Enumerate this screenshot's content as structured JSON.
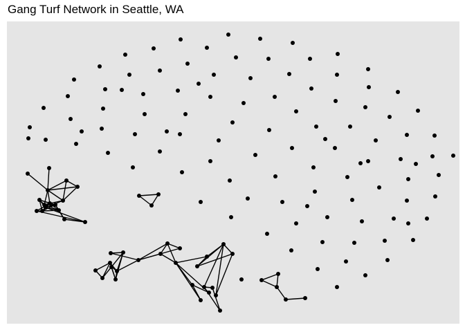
{
  "title": "Gang Turf Network in Seattle, WA",
  "colors": {
    "panel": "#e5e5e5",
    "node": "#000000",
    "edge": "#000000",
    "page": "#ffffff"
  },
  "network": {
    "components": [
      {
        "name": "cluster-left",
        "nodes": [
          "L1",
          "L2",
          "L3",
          "L4",
          "L5",
          "L6",
          "L7",
          "L8",
          "L9",
          "L10",
          "L11",
          "L12",
          "L13",
          "L14",
          "L15",
          "L16"
        ],
        "edges": [
          [
            "L1",
            "L3"
          ],
          [
            "L2",
            "L3"
          ],
          [
            "L3",
            "L4"
          ],
          [
            "L3",
            "L5"
          ],
          [
            "L3",
            "L7"
          ],
          [
            "L3",
            "L8"
          ],
          [
            "L3",
            "L9"
          ],
          [
            "L4",
            "L5"
          ],
          [
            "L4",
            "L8"
          ],
          [
            "L5",
            "L8"
          ],
          [
            "L6",
            "L7"
          ],
          [
            "L6",
            "L9"
          ],
          [
            "L6",
            "L10"
          ],
          [
            "L6",
            "L11"
          ],
          [
            "L6",
            "L12"
          ],
          [
            "L7",
            "L9"
          ],
          [
            "L7",
            "L11"
          ],
          [
            "L7",
            "L13"
          ],
          [
            "L8",
            "L9"
          ],
          [
            "L8",
            "L11"
          ],
          [
            "L9",
            "L10"
          ],
          [
            "L9",
            "L11"
          ],
          [
            "L9",
            "L12"
          ],
          [
            "L9",
            "L13"
          ],
          [
            "L9",
            "L14"
          ],
          [
            "L10",
            "L11"
          ],
          [
            "L10",
            "L12"
          ],
          [
            "L10",
            "L13"
          ],
          [
            "L10",
            "L15"
          ],
          [
            "L11",
            "L12"
          ],
          [
            "L11",
            "L13"
          ],
          [
            "L12",
            "L13"
          ],
          [
            "L12",
            "L14"
          ],
          [
            "L13",
            "L15"
          ],
          [
            "L14",
            "L16"
          ],
          [
            "L15",
            "L16"
          ],
          [
            "L11",
            "L16"
          ]
        ]
      },
      {
        "name": "triangle",
        "nodes": [
          "T1",
          "T2",
          "T3"
        ],
        "edges": [
          [
            "T1",
            "T2"
          ],
          [
            "T2",
            "T3"
          ],
          [
            "T1",
            "T3"
          ]
        ]
      },
      {
        "name": "cluster-bottom",
        "nodes": [
          "B1",
          "B2",
          "B3",
          "B4",
          "B5",
          "B6",
          "B7",
          "B8",
          "B9",
          "B10",
          "B11",
          "B12",
          "B13",
          "B14",
          "B15",
          "B16",
          "B17",
          "B18",
          "B19",
          "B20",
          "B21",
          "B22",
          "B23",
          "B24"
        ],
        "edges": [
          [
            "B1",
            "B2"
          ],
          [
            "B1",
            "B3"
          ],
          [
            "B2",
            "B3"
          ],
          [
            "B2",
            "B4"
          ],
          [
            "B3",
            "B4"
          ],
          [
            "B3",
            "B5"
          ],
          [
            "B3",
            "B6"
          ],
          [
            "B4",
            "B5"
          ],
          [
            "B4",
            "B6"
          ],
          [
            "B4",
            "B7"
          ],
          [
            "B5",
            "B6"
          ],
          [
            "B5",
            "B7"
          ],
          [
            "B5",
            "B9"
          ],
          [
            "B6",
            "B7"
          ],
          [
            "B7",
            "B8"
          ],
          [
            "B8",
            "B9"
          ],
          [
            "B9",
            "B10"
          ],
          [
            "B9",
            "B11"
          ],
          [
            "B9",
            "B12"
          ],
          [
            "B10",
            "B11"
          ],
          [
            "B10",
            "B13"
          ],
          [
            "B11",
            "B13"
          ],
          [
            "B11",
            "B12"
          ],
          [
            "B13",
            "B16"
          ],
          [
            "B13",
            "B15"
          ],
          [
            "B13",
            "B14"
          ],
          [
            "B14",
            "B15"
          ],
          [
            "B14",
            "B16"
          ],
          [
            "B13",
            "B17"
          ],
          [
            "B17",
            "B18"
          ],
          [
            "B17",
            "B19"
          ],
          [
            "B18",
            "B19"
          ],
          [
            "B18",
            "B20"
          ],
          [
            "B19",
            "B20"
          ],
          [
            "B19",
            "B21"
          ],
          [
            "B20",
            "B21"
          ],
          [
            "B19",
            "B22"
          ],
          [
            "B22",
            "B23"
          ],
          [
            "B22",
            "B24"
          ],
          [
            "B23",
            "B24"
          ]
        ]
      },
      {
        "name": "chain",
        "nodes": [
          "C1",
          "C2",
          "C3",
          "C4",
          "C5"
        ],
        "edges": [
          [
            "C1",
            "C2"
          ],
          [
            "C1",
            "C3"
          ],
          [
            "C2",
            "C3"
          ],
          [
            "C3",
            "C4"
          ],
          [
            "C4",
            "C5"
          ]
        ]
      }
    ],
    "isolated_node_count": 109
  }
}
